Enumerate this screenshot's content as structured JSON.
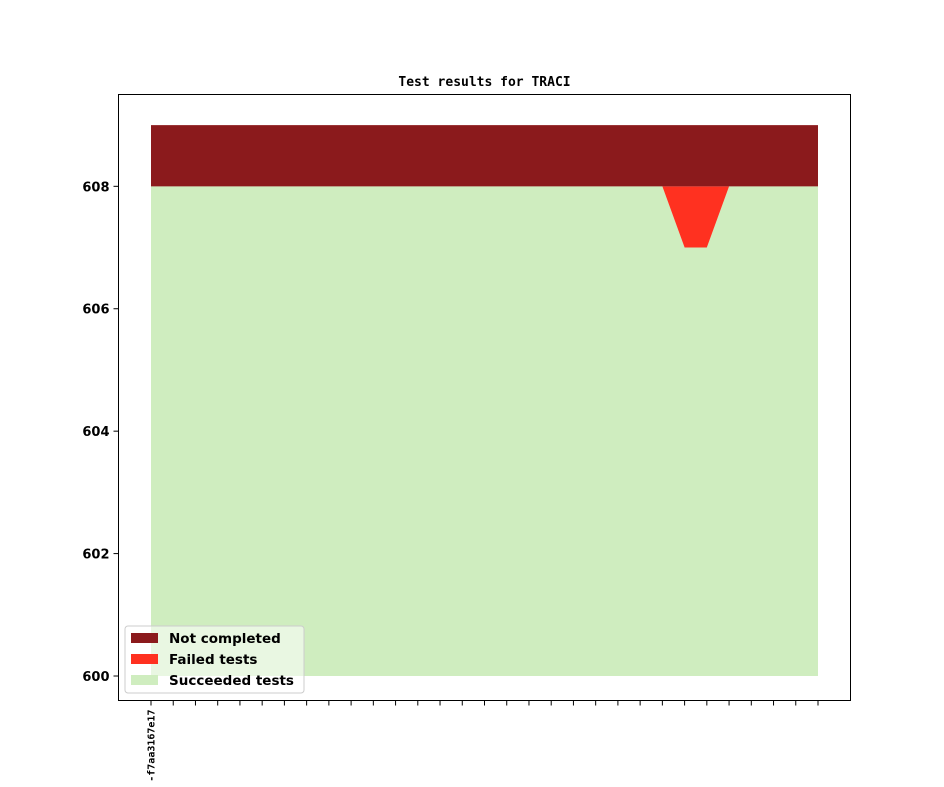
{
  "chart_data": {
    "type": "area",
    "title": "Test results for TRACI",
    "xlabel": "",
    "ylabel": "",
    "ylim": [
      599.6,
      609.5
    ],
    "yticks": [
      600,
      602,
      604,
      606,
      608
    ],
    "x_count": 31,
    "x_tick_labels": [
      "-f7aa3167e17"
    ],
    "grid": false,
    "legend_position": "lower-left",
    "stack_base": 600,
    "series": [
      {
        "name": "Succeeded tests",
        "color": "#cfedbf",
        "values": [
          608,
          608,
          608,
          608,
          608,
          608,
          608,
          608,
          608,
          608,
          608,
          608,
          608,
          608,
          608,
          608,
          608,
          608,
          608,
          608,
          608,
          608,
          608,
          608,
          607,
          607,
          608,
          608,
          608,
          608,
          608
        ]
      },
      {
        "name": "Failed tests",
        "color": "#ff3120",
        "values": [
          0,
          0,
          0,
          0,
          0,
          0,
          0,
          0,
          0,
          0,
          0,
          0,
          0,
          0,
          0,
          0,
          0,
          0,
          0,
          0,
          0,
          0,
          0,
          0,
          1,
          1,
          0,
          0,
          0,
          0,
          0
        ]
      },
      {
        "name": "Not completed",
        "color": "#8b1a1c",
        "values": [
          1,
          1,
          1,
          1,
          1,
          1,
          1,
          1,
          1,
          1,
          1,
          1,
          1,
          1,
          1,
          1,
          1,
          1,
          1,
          1,
          1,
          1,
          1,
          1,
          1,
          1,
          1,
          1,
          1,
          1,
          1
        ]
      }
    ],
    "legend_order": [
      "Not completed",
      "Failed tests",
      "Succeeded tests"
    ]
  }
}
